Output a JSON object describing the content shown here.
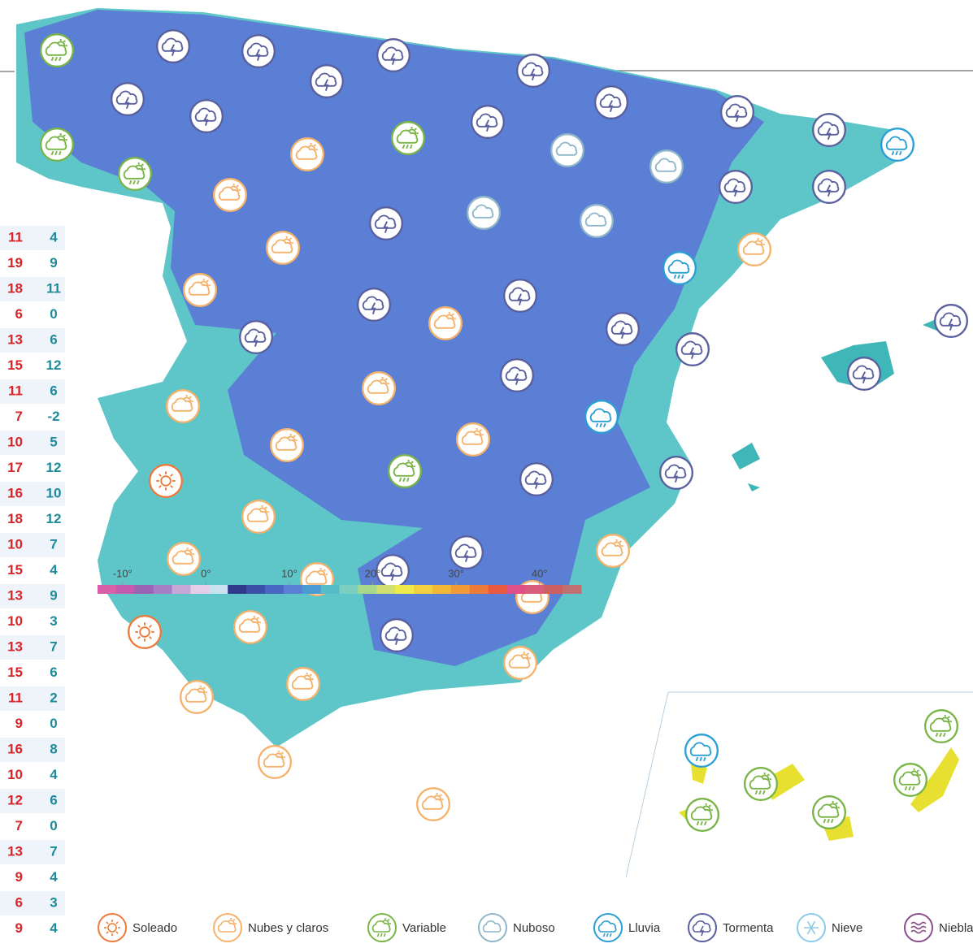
{
  "table": {
    "rows": [
      [
        11,
        4
      ],
      [
        19,
        9
      ],
      [
        18,
        11
      ],
      [
        6,
        0
      ],
      [
        13,
        6
      ],
      [
        15,
        12
      ],
      [
        11,
        6
      ],
      [
        7,
        -2
      ],
      [
        10,
        5
      ],
      [
        17,
        12
      ],
      [
        16,
        10
      ],
      [
        18,
        12
      ],
      [
        10,
        7
      ],
      [
        15,
        4
      ],
      [
        13,
        9
      ],
      [
        10,
        3
      ],
      [
        13,
        7
      ],
      [
        15,
        6
      ],
      [
        11,
        2
      ],
      [
        9,
        0
      ],
      [
        16,
        8
      ],
      [
        10,
        4
      ],
      [
        12,
        6
      ],
      [
        7,
        0
      ],
      [
        13,
        7
      ],
      [
        9,
        4
      ],
      [
        6,
        3
      ],
      [
        9,
        4
      ]
    ]
  },
  "scale": {
    "lim": [
      -13,
      45
    ],
    "ticks": [
      {
        "value": -10,
        "label": "-10°"
      },
      {
        "value": 0,
        "label": "0°"
      },
      {
        "value": 10,
        "label": "10°"
      },
      {
        "value": 20,
        "label": "20°"
      },
      {
        "value": 30,
        "label": "30°"
      },
      {
        "value": 40,
        "label": "40°"
      }
    ],
    "colors": [
      "#d960a8",
      "#c45ab0",
      "#9a63b4",
      "#a67ec4",
      "#c7a6d8",
      "#e4cde8",
      "#c8e2f0",
      "#2f3a8a",
      "#3a4fa8",
      "#4866c2",
      "#5a80d6",
      "#4a9ad4",
      "#55bcc8",
      "#7ccfc0",
      "#a8d88a",
      "#cfe070",
      "#eeea4a",
      "#f4d040",
      "#f4b838",
      "#f29a38",
      "#ee7a3a",
      "#e95a40",
      "#e05088",
      "#d95c7a",
      "#cc6060",
      "#c07070"
    ]
  },
  "legend": [
    "Soleado",
    "Nubes y claros",
    "Variable",
    "Nuboso",
    "Lluvia",
    "Tormenta",
    "Nieve",
    "Niebla"
  ]
}
